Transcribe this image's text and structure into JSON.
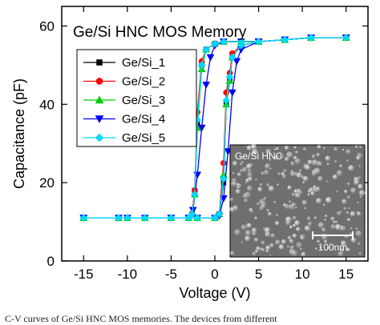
{
  "chart_data": {
    "type": "line",
    "title": "Ge/Si HNC MOS Memory",
    "xlabel": "Voltage (V)",
    "ylabel": "Capacitance (pF)",
    "xlim": [
      -17.5,
      17.5
    ],
    "ylim": [
      0,
      65
    ],
    "xticks": [
      -15,
      -10,
      -5,
      0,
      5,
      10,
      15
    ],
    "yticks": [
      0,
      20,
      40,
      60
    ],
    "xtick_labels": [
      "-15",
      "-10",
      "-5",
      "0",
      "5",
      "10",
      "15"
    ],
    "ytick_labels": [
      "0",
      "20",
      "40",
      "60"
    ],
    "grid": false,
    "legend_position": "left-center",
    "series": [
      {
        "name": "Ge/Si_1",
        "color": "#000000",
        "marker": "square",
        "forward": [
          [
            -15,
            11
          ],
          [
            -11,
            11
          ],
          [
            -8,
            11
          ],
          [
            -5,
            11
          ],
          [
            -2,
            11
          ],
          [
            0,
            11
          ],
          [
            0.5,
            12
          ],
          [
            1,
            20
          ],
          [
            1.3,
            40
          ],
          [
            1.7,
            46
          ],
          [
            2,
            52
          ],
          [
            3,
            55
          ],
          [
            5,
            56
          ],
          [
            8,
            56.5
          ],
          [
            11,
            57
          ],
          [
            15,
            57
          ]
        ],
        "reverse": [
          [
            15,
            57
          ],
          [
            11,
            57
          ],
          [
            8,
            56.5
          ],
          [
            5,
            56
          ],
          [
            3,
            56
          ],
          [
            1,
            56
          ],
          [
            0,
            55.5
          ],
          [
            -1,
            54
          ],
          [
            -1.5,
            50
          ],
          [
            -2,
            35
          ],
          [
            -2.3,
            18
          ],
          [
            -2.6,
            12
          ],
          [
            -3,
            11
          ],
          [
            -5,
            11
          ],
          [
            -10,
            11
          ],
          [
            -15,
            11
          ]
        ]
      },
      {
        "name": "Ge/Si_2",
        "color": "#ff0000",
        "marker": "circle",
        "forward": [
          [
            -15,
            11
          ],
          [
            -11,
            11
          ],
          [
            -8,
            11
          ],
          [
            -5,
            11
          ],
          [
            -2,
            11
          ],
          [
            0,
            11
          ],
          [
            0.5,
            12
          ],
          [
            1,
            25
          ],
          [
            1.3,
            43
          ],
          [
            1.7,
            48
          ],
          [
            2,
            53
          ],
          [
            3,
            55
          ],
          [
            5,
            56
          ],
          [
            8,
            56.5
          ],
          [
            11,
            57
          ],
          [
            15,
            57
          ]
        ],
        "reverse": [
          [
            15,
            57
          ],
          [
            11,
            57
          ],
          [
            8,
            56.5
          ],
          [
            5,
            56
          ],
          [
            3,
            56
          ],
          [
            1,
            56
          ],
          [
            0,
            55.5
          ],
          [
            -1,
            54
          ],
          [
            -1.5,
            51
          ],
          [
            -2,
            38
          ],
          [
            -2.3,
            18
          ],
          [
            -2.6,
            12
          ],
          [
            -3,
            11
          ],
          [
            -5,
            11
          ],
          [
            -10,
            11
          ],
          [
            -15,
            11
          ]
        ]
      },
      {
        "name": "Ge/Si_3",
        "color": "#00cc00",
        "marker": "triangle-up",
        "forward": [
          [
            -15,
            11
          ],
          [
            -11,
            11
          ],
          [
            -8,
            11
          ],
          [
            -5,
            11
          ],
          [
            -2,
            11
          ],
          [
            0,
            11
          ],
          [
            0.5,
            12
          ],
          [
            1,
            22
          ],
          [
            1.3,
            40
          ],
          [
            1.7,
            46
          ],
          [
            2,
            52
          ],
          [
            3,
            55
          ],
          [
            5,
            56
          ],
          [
            8,
            56.5
          ],
          [
            11,
            57
          ],
          [
            15,
            57
          ]
        ],
        "reverse": [
          [
            15,
            57
          ],
          [
            11,
            57
          ],
          [
            8,
            56.5
          ],
          [
            5,
            56
          ],
          [
            3,
            56
          ],
          [
            1,
            56
          ],
          [
            0,
            55.5
          ],
          [
            -1,
            54
          ],
          [
            -1.5,
            49
          ],
          [
            -2,
            34
          ],
          [
            -2.3,
            17
          ],
          [
            -2.6,
            12
          ],
          [
            -3,
            11
          ],
          [
            -5,
            11
          ],
          [
            -10,
            11
          ],
          [
            -15,
            11
          ]
        ]
      },
      {
        "name": "Ge/Si_4",
        "color": "#0000ff",
        "marker": "triangle-down",
        "forward": [
          [
            -15,
            11
          ],
          [
            -11,
            11
          ],
          [
            -8,
            11
          ],
          [
            -5,
            11
          ],
          [
            -2,
            11
          ],
          [
            0,
            11
          ],
          [
            0.5,
            11.5
          ],
          [
            1,
            16
          ],
          [
            1.5,
            28
          ],
          [
            2,
            43
          ],
          [
            2.5,
            51
          ],
          [
            3,
            54
          ],
          [
            5,
            56
          ],
          [
            8,
            56.5
          ],
          [
            11,
            57
          ],
          [
            15,
            57
          ]
        ],
        "reverse": [
          [
            15,
            57
          ],
          [
            11,
            57
          ],
          [
            8,
            56.5
          ],
          [
            5,
            56
          ],
          [
            3,
            56
          ],
          [
            1,
            56
          ],
          [
            0,
            55
          ],
          [
            -0.5,
            52
          ],
          [
            -1,
            45
          ],
          [
            -1.5,
            34
          ],
          [
            -2,
            22
          ],
          [
            -2.5,
            13
          ],
          [
            -3,
            11
          ],
          [
            -5,
            11
          ],
          [
            -10,
            11
          ],
          [
            -15,
            11
          ]
        ]
      },
      {
        "name": "Ge/Si_5",
        "color": "#00d8ff",
        "marker": "diamond",
        "forward": [
          [
            -15,
            11
          ],
          [
            -11,
            11
          ],
          [
            -8,
            11
          ],
          [
            -5,
            11
          ],
          [
            -2,
            11
          ],
          [
            0,
            11
          ],
          [
            0.5,
            12
          ],
          [
            1,
            21
          ],
          [
            1.3,
            41
          ],
          [
            1.7,
            47
          ],
          [
            2,
            52
          ],
          [
            3,
            55
          ],
          [
            5,
            56
          ],
          [
            8,
            56.5
          ],
          [
            11,
            57
          ],
          [
            15,
            57
          ]
        ],
        "reverse": [
          [
            15,
            57
          ],
          [
            11,
            57
          ],
          [
            8,
            56.5
          ],
          [
            5,
            56
          ],
          [
            3,
            56
          ],
          [
            1,
            56
          ],
          [
            0,
            55.5
          ],
          [
            -1,
            54
          ],
          [
            -1.5,
            50
          ],
          [
            -2,
            36
          ],
          [
            -2.3,
            17
          ],
          [
            -2.6,
            12
          ],
          [
            -3,
            11
          ],
          [
            -5,
            11
          ],
          [
            -10,
            11
          ],
          [
            -15,
            11
          ]
        ]
      }
    ]
  },
  "inset": {
    "label": "Ge/Si HNC",
    "scale_bar_label": "100nm"
  },
  "caption": "C-V curves of Ge/Si HNC    MOS memories.  The devices from different"
}
